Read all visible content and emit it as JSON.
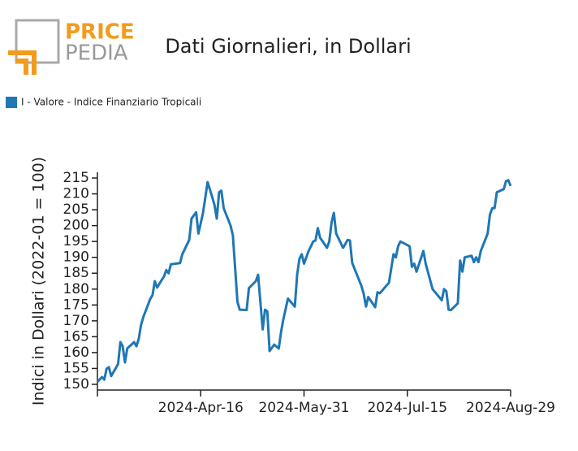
{
  "logo": {
    "top": "PRICE",
    "bottom": "PEDIA"
  },
  "chart_data": {
    "type": "line",
    "title": "Dati Giornalieri, in Dollari",
    "ylabel": "Indici in Dollari (2022-01 = 100)",
    "xlim": [
      "2024-03-02",
      "2024-08-29"
    ],
    "xticks": [
      "2024-04-16",
      "2024-05-31",
      "2024-07-15",
      "2024-08-29"
    ],
    "xtick_labels": [
      "2024-Apr-16",
      "2024-May-31",
      "2024-Jul-15",
      "2024-Aug-29"
    ],
    "ylim": [
      148.2,
      216.8
    ],
    "yticks": [
      150,
      155,
      160,
      165,
      170,
      175,
      180,
      185,
      190,
      195,
      200,
      205,
      210,
      215
    ],
    "legend": "top-left",
    "x": [
      "2024-03-02",
      "2024-03-04",
      "2024-03-05",
      "2024-03-06",
      "2024-03-07",
      "2024-03-08",
      "2024-03-11",
      "2024-03-12",
      "2024-03-13",
      "2024-03-14",
      "2024-03-15",
      "2024-03-18",
      "2024-03-19",
      "2024-03-20",
      "2024-03-21",
      "2024-03-22",
      "2024-03-25",
      "2024-03-26",
      "2024-03-27",
      "2024-03-28",
      "2024-03-31",
      "2024-04-01",
      "2024-04-02",
      "2024-04-03",
      "2024-04-07",
      "2024-04-08",
      "2024-04-10",
      "2024-04-11",
      "2024-04-12",
      "2024-04-14",
      "2024-04-15",
      "2024-04-17",
      "2024-04-19",
      "2024-04-21",
      "2024-04-22",
      "2024-04-23",
      "2024-04-24",
      "2024-04-25",
      "2024-04-26",
      "2024-04-29",
      "2024-04-30",
      "2024-05-02",
      "2024-05-03",
      "2024-05-06",
      "2024-05-07",
      "2024-05-10",
      "2024-05-11",
      "2024-05-13",
      "2024-05-14",
      "2024-05-15",
      "2024-05-16",
      "2024-05-18",
      "2024-05-20",
      "2024-05-21",
      "2024-05-22",
      "2024-05-24",
      "2024-05-27",
      "2024-05-28",
      "2024-05-29",
      "2024-05-30",
      "2024-05-31",
      "2024-06-02",
      "2024-06-04",
      "2024-06-05",
      "2024-06-06",
      "2024-06-07",
      "2024-06-10",
      "2024-06-11",
      "2024-06-12",
      "2024-06-13",
      "2024-06-14",
      "2024-06-17",
      "2024-06-19",
      "2024-06-20",
      "2024-06-21",
      "2024-06-25",
      "2024-06-26",
      "2024-06-27",
      "2024-06-28",
      "2024-07-01",
      "2024-07-02",
      "2024-07-03",
      "2024-07-04",
      "2024-07-07",
      "2024-07-09",
      "2024-07-10",
      "2024-07-11",
      "2024-07-12",
      "2024-07-16",
      "2024-07-17",
      "2024-07-18",
      "2024-07-19",
      "2024-07-22",
      "2024-07-23",
      "2024-07-26",
      "2024-07-30",
      "2024-07-31",
      "2024-08-01",
      "2024-08-02",
      "2024-08-03",
      "2024-08-06",
      "2024-08-07",
      "2024-08-08",
      "2024-08-09",
      "2024-08-12",
      "2024-08-13",
      "2024-08-14",
      "2024-08-15",
      "2024-08-16",
      "2024-08-19",
      "2024-08-20",
      "2024-08-21",
      "2024-08-22",
      "2024-08-23",
      "2024-08-26",
      "2024-08-27",
      "2024-08-28",
      "2024-08-29"
    ],
    "series": [
      {
        "name": "I - Valore - Indice Finanziario Tropicali",
        "color": "#1f77b4",
        "values": [
          150.8,
          152.3,
          151.5,
          154.9,
          155.4,
          152.6,
          156.4,
          163.3,
          162.0,
          156.9,
          161.3,
          163.3,
          162.0,
          164.3,
          168.7,
          171.2,
          176.9,
          178.1,
          182.5,
          180.5,
          184,
          186,
          185,
          187.8,
          188.2,
          191,
          194,
          195.5,
          202.2,
          204.2,
          197.5,
          204,
          213.7,
          209,
          206.5,
          202.2,
          210.5,
          211,
          205.5,
          200,
          197,
          176,
          173.5,
          173.4,
          180.3,
          182.5,
          184.5,
          167.3,
          173.5,
          173,
          160.5,
          162.5,
          161.3,
          166.5,
          170.5,
          177,
          174.5,
          184.5,
          189.5,
          191,
          188,
          192,
          195,
          195.3,
          199.2,
          196.2,
          193,
          195,
          201,
          204,
          197.5,
          193,
          195.5,
          195.3,
          188.2,
          181,
          178.5,
          174.5,
          177.5,
          174.3,
          179,
          178.7,
          179.5,
          182,
          191,
          190,
          193.5,
          195,
          193.5,
          187,
          188,
          185.5,
          192,
          188,
          180,
          176.5,
          180,
          179.3,
          173.5,
          173.4,
          175.5,
          189,
          185.5,
          190,
          190.5,
          188.5,
          190,
          188.5,
          192,
          197.5,
          203.5,
          205.5,
          205.5,
          210.5,
          211.5,
          214,
          214.3,
          212.5
        ]
      }
    ]
  }
}
